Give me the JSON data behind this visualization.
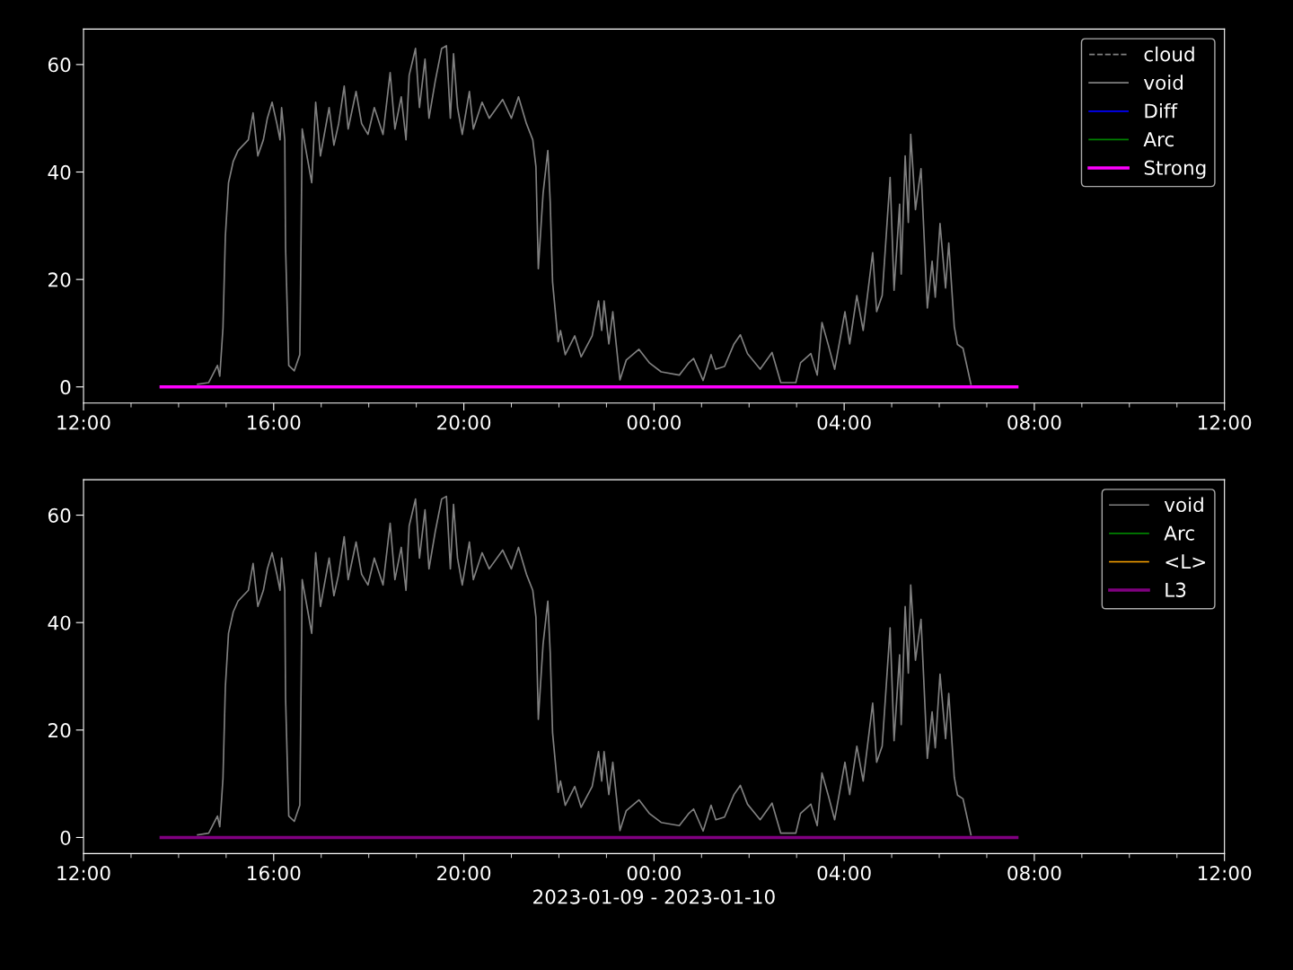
{
  "chart_data": [
    {
      "type": "line",
      "ylim": [
        -3,
        66.6
      ],
      "yticks": [
        0,
        20,
        40,
        60
      ],
      "xlim": [
        "2023-01-09T12:00",
        "2023-01-10T12:00"
      ],
      "xticks": [
        {
          "value": "2023-01-09T12:00",
          "label": "12:00"
        },
        {
          "value": "2023-01-09T16:00",
          "label": "16:00"
        },
        {
          "value": "2023-01-09T20:00",
          "label": "20:00"
        },
        {
          "value": "2023-01-10T00:00",
          "label": "00:00"
        },
        {
          "value": "2023-01-10T04:00",
          "label": "04:00"
        },
        {
          "value": "2023-01-10T08:00",
          "label": "08:00"
        },
        {
          "value": "2023-01-10T12:00",
          "label": "12:00"
        }
      ],
      "grid": false,
      "legend": "top right",
      "series": [
        {
          "name": "cloud",
          "color": "#808080",
          "line_style": "dashed"
        },
        {
          "name": "void",
          "color": "#808080",
          "line_style": "solid",
          "x": [
            "2023-01-09T14:24",
            "2023-01-09T14:38",
            "2023-01-09T14:49",
            "2023-01-09T14:52",
            "2023-01-09T14:56",
            "2023-01-09T14:59",
            "2023-01-09T15:03",
            "2023-01-09T15:09",
            "2023-01-09T15:15",
            "2023-01-09T15:28",
            "2023-01-09T15:34",
            "2023-01-09T15:40",
            "2023-01-09T15:47",
            "2023-01-09T15:52",
            "2023-01-09T15:58",
            "2023-01-09T16:04",
            "2023-01-09T16:08",
            "2023-01-09T16:10",
            "2023-01-09T16:14",
            "2023-01-09T16:15",
            "2023-01-09T16:19",
            "2023-01-09T16:26",
            "2023-01-09T16:33",
            "2023-01-09T16:36",
            "2023-01-09T16:42",
            "2023-01-09T16:48",
            "2023-01-09T16:53",
            "2023-01-09T16:59",
            "2023-01-09T17:10",
            "2023-01-09T17:16",
            "2023-01-09T17:22",
            "2023-01-09T17:29",
            "2023-01-09T17:34",
            "2023-01-09T17:44",
            "2023-01-09T17:51",
            "2023-01-09T17:59",
            "2023-01-09T18:07",
            "2023-01-09T18:18",
            "2023-01-09T18:27",
            "2023-01-09T18:33",
            "2023-01-09T18:41",
            "2023-01-09T18:47",
            "2023-01-09T18:51",
            "2023-01-09T18:59",
            "2023-01-09T19:04",
            "2023-01-09T19:11",
            "2023-01-09T19:16",
            "2023-01-09T19:24",
            "2023-01-09T19:32",
            "2023-01-09T19:38",
            "2023-01-09T19:43",
            "2023-01-09T19:47",
            "2023-01-09T19:52",
            "2023-01-09T19:58",
            "2023-01-09T20:07",
            "2023-01-09T20:12",
            "2023-01-09T20:23",
            "2023-01-09T20:32",
            "2023-01-09T20:49",
            "2023-01-09T21:00",
            "2023-01-09T21:09",
            "2023-01-09T21:19",
            "2023-01-09T21:27",
            "2023-01-09T21:31",
            "2023-01-09T21:34",
            "2023-01-09T21:40",
            "2023-01-09T21:46",
            "2023-01-09T21:49",
            "2023-01-09T21:52",
            "2023-01-09T21:59",
            "2023-01-09T22:02",
            "2023-01-09T22:08",
            "2023-01-09T22:20",
            "2023-01-09T22:28",
            "2023-01-09T22:42",
            "2023-01-09T22:50",
            "2023-01-09T22:54",
            "2023-01-09T22:57",
            "2023-01-09T23:03",
            "2023-01-09T23:08",
            "2023-01-09T23:17",
            "2023-01-09T23:25",
            "2023-01-09T23:41",
            "2023-01-09T23:54",
            "2023-01-10T00:09",
            "2023-01-10T00:32",
            "2023-01-10T00:44",
            "2023-01-10T00:50",
            "2023-01-10T01:02",
            "2023-01-10T01:12",
            "2023-01-10T01:18",
            "2023-01-10T01:29",
            "2023-01-10T01:41",
            "2023-01-10T01:49",
            "2023-01-10T01:58",
            "2023-01-10T02:14",
            "2023-01-10T02:29",
            "2023-01-10T02:40",
            "2023-01-10T02:59",
            "2023-01-10T03:05",
            "2023-01-10T03:18",
            "2023-01-10T03:26",
            "2023-01-10T03:32",
            "2023-01-10T03:40",
            "2023-01-10T03:48",
            "2023-01-10T04:01",
            "2023-01-10T04:07",
            "2023-01-10T04:16",
            "2023-01-10T04:24",
            "2023-01-10T04:36",
            "2023-01-10T04:41",
            "2023-01-10T04:48",
            "2023-01-10T04:58",
            "2023-01-10T05:03",
            "2023-01-10T05:10",
            "2023-01-10T05:12",
            "2023-01-10T05:17",
            "2023-01-10T05:21",
            "2023-01-10T05:24",
            "2023-01-10T05:30",
            "2023-01-10T05:37",
            "2023-01-10T05:45",
            "2023-01-10T05:51",
            "2023-01-10T05:55",
            "2023-01-10T06:01",
            "2023-01-10T06:08",
            "2023-01-10T06:12",
            "2023-01-10T06:19",
            "2023-01-10T06:23",
            "2023-01-10T06:30",
            "2023-01-10T06:40"
          ],
          "values": [
            0.5,
            0.8,
            4,
            2,
            11,
            28,
            38,
            42,
            44,
            46,
            51,
            43,
            46,
            50,
            53,
            49,
            46,
            52,
            46,
            26,
            4,
            3,
            6,
            48,
            43,
            38,
            53,
            43,
            52,
            45,
            49,
            56,
            48,
            55,
            49,
            47,
            52,
            47,
            58.5,
            48,
            54,
            46,
            58,
            63,
            52,
            61,
            50,
            57,
            63,
            63.5,
            50,
            62,
            52,
            47,
            55,
            48,
            53,
            50,
            53.5,
            50,
            54,
            49,
            46,
            41,
            22,
            36,
            44,
            34.5,
            19.5,
            8.4,
            10.5,
            6,
            9.5,
            5.6,
            9.5,
            16,
            10.5,
            16,
            8,
            14,
            1.3,
            5,
            7,
            4.5,
            2.8,
            2.2,
            4.5,
            5.3,
            1.2,
            6,
            3.3,
            3.8,
            8,
            9.7,
            6.2,
            3.3,
            6.4,
            0.8,
            0.8,
            4.5,
            6.2,
            2.2,
            12,
            7.8,
            3.3,
            14,
            8,
            17,
            10.5,
            25,
            14,
            17,
            39,
            18,
            34,
            21,
            43,
            30.6,
            47,
            33,
            40.6,
            14.7,
            23.4,
            16.7,
            30.4,
            18.4,
            26.8,
            11.2,
            7.9,
            7.2,
            0.5
          ]
        },
        {
          "name": "Diff",
          "color": "#0000ff",
          "line_style": "solid"
        },
        {
          "name": "Arc",
          "color": "#008000",
          "line_style": "solid"
        },
        {
          "name": "Strong",
          "color": "#ff00ff",
          "line_style": "solid",
          "x": [
            "2023-01-09T13:38",
            "2023-01-10T07:38"
          ],
          "values": [
            0,
            0
          ]
        }
      ]
    },
    {
      "type": "line",
      "ylim": [
        -3,
        66.6
      ],
      "yticks": [
        0,
        20,
        40,
        60
      ],
      "xlim": [
        "2023-01-09T12:00",
        "2023-01-10T12:00"
      ],
      "xticks": [
        {
          "value": "2023-01-09T12:00",
          "label": "12:00"
        },
        {
          "value": "2023-01-09T16:00",
          "label": "16:00"
        },
        {
          "value": "2023-01-09T20:00",
          "label": "20:00"
        },
        {
          "value": "2023-01-10T00:00",
          "label": "00:00"
        },
        {
          "value": "2023-01-10T04:00",
          "label": "04:00"
        },
        {
          "value": "2023-01-10T08:00",
          "label": "08:00"
        },
        {
          "value": "2023-01-10T12:00",
          "label": "12:00"
        }
      ],
      "xlabel": "2023-01-09 - 2023-01-10",
      "grid": false,
      "legend": "top right",
      "series": [
        {
          "name": "void",
          "color": "#808080",
          "line_style": "solid",
          "x": [
            "2023-01-09T14:24",
            "2023-01-09T14:38",
            "2023-01-09T14:49",
            "2023-01-09T14:52",
            "2023-01-09T14:56",
            "2023-01-09T14:59",
            "2023-01-09T15:03",
            "2023-01-09T15:09",
            "2023-01-09T15:15",
            "2023-01-09T15:28",
            "2023-01-09T15:34",
            "2023-01-09T15:40",
            "2023-01-09T15:47",
            "2023-01-09T15:52",
            "2023-01-09T15:58",
            "2023-01-09T16:04",
            "2023-01-09T16:08",
            "2023-01-09T16:10",
            "2023-01-09T16:14",
            "2023-01-09T16:15",
            "2023-01-09T16:19",
            "2023-01-09T16:26",
            "2023-01-09T16:33",
            "2023-01-09T16:36",
            "2023-01-09T16:42",
            "2023-01-09T16:48",
            "2023-01-09T16:53",
            "2023-01-09T16:59",
            "2023-01-09T17:10",
            "2023-01-09T17:16",
            "2023-01-09T17:22",
            "2023-01-09T17:29",
            "2023-01-09T17:34",
            "2023-01-09T17:44",
            "2023-01-09T17:51",
            "2023-01-09T17:59",
            "2023-01-09T18:07",
            "2023-01-09T18:18",
            "2023-01-09T18:27",
            "2023-01-09T18:33",
            "2023-01-09T18:41",
            "2023-01-09T18:47",
            "2023-01-09T18:51",
            "2023-01-09T18:59",
            "2023-01-09T19:04",
            "2023-01-09T19:11",
            "2023-01-09T19:16",
            "2023-01-09T19:24",
            "2023-01-09T19:32",
            "2023-01-09T19:38",
            "2023-01-09T19:43",
            "2023-01-09T19:47",
            "2023-01-09T19:52",
            "2023-01-09T19:58",
            "2023-01-09T20:07",
            "2023-01-09T20:12",
            "2023-01-09T20:23",
            "2023-01-09T20:32",
            "2023-01-09T20:49",
            "2023-01-09T21:00",
            "2023-01-09T21:09",
            "2023-01-09T21:19",
            "2023-01-09T21:27",
            "2023-01-09T21:31",
            "2023-01-09T21:34",
            "2023-01-09T21:40",
            "2023-01-09T21:46",
            "2023-01-09T21:49",
            "2023-01-09T21:52",
            "2023-01-09T21:59",
            "2023-01-09T22:02",
            "2023-01-09T22:08",
            "2023-01-09T22:20",
            "2023-01-09T22:28",
            "2023-01-09T22:42",
            "2023-01-09T22:50",
            "2023-01-09T22:54",
            "2023-01-09T22:57",
            "2023-01-09T23:03",
            "2023-01-09T23:08",
            "2023-01-09T23:17",
            "2023-01-09T23:25",
            "2023-01-09T23:41",
            "2023-01-09T23:54",
            "2023-01-10T00:09",
            "2023-01-10T00:32",
            "2023-01-10T00:44",
            "2023-01-10T00:50",
            "2023-01-10T01:02",
            "2023-01-10T01:12",
            "2023-01-10T01:18",
            "2023-01-10T01:29",
            "2023-01-10T01:41",
            "2023-01-10T01:49",
            "2023-01-10T01:58",
            "2023-01-10T02:14",
            "2023-01-10T02:29",
            "2023-01-10T02:40",
            "2023-01-10T02:59",
            "2023-01-10T03:05",
            "2023-01-10T03:18",
            "2023-01-10T03:26",
            "2023-01-10T03:32",
            "2023-01-10T03:40",
            "2023-01-10T03:48",
            "2023-01-10T04:01",
            "2023-01-10T04:07",
            "2023-01-10T04:16",
            "2023-01-10T04:24",
            "2023-01-10T04:36",
            "2023-01-10T04:41",
            "2023-01-10T04:48",
            "2023-01-10T04:58",
            "2023-01-10T05:03",
            "2023-01-10T05:10",
            "2023-01-10T05:12",
            "2023-01-10T05:17",
            "2023-01-10T05:21",
            "2023-01-10T05:24",
            "2023-01-10T05:30",
            "2023-01-10T05:37",
            "2023-01-10T05:45",
            "2023-01-10T05:51",
            "2023-01-10T05:55",
            "2023-01-10T06:01",
            "2023-01-10T06:08",
            "2023-01-10T06:12",
            "2023-01-10T06:19",
            "2023-01-10T06:23",
            "2023-01-10T06:30",
            "2023-01-10T06:40"
          ],
          "values": [
            0.5,
            0.8,
            4,
            2,
            11,
            28,
            38,
            42,
            44,
            46,
            51,
            43,
            46,
            50,
            53,
            49,
            46,
            52,
            46,
            26,
            4,
            3,
            6,
            48,
            43,
            38,
            53,
            43,
            52,
            45,
            49,
            56,
            48,
            55,
            49,
            47,
            52,
            47,
            58.5,
            48,
            54,
            46,
            58,
            63,
            52,
            61,
            50,
            57,
            63,
            63.5,
            50,
            62,
            52,
            47,
            55,
            48,
            53,
            50,
            53.5,
            50,
            54,
            49,
            46,
            41,
            22,
            36,
            44,
            34.5,
            19.5,
            8.4,
            10.5,
            6,
            9.5,
            5.6,
            9.5,
            16,
            10.5,
            16,
            8,
            14,
            1.3,
            5,
            7,
            4.5,
            2.8,
            2.2,
            4.5,
            5.3,
            1.2,
            6,
            3.3,
            3.8,
            8,
            9.7,
            6.2,
            3.3,
            6.4,
            0.8,
            0.8,
            4.5,
            6.2,
            2.2,
            12,
            7.8,
            3.3,
            14,
            8,
            17,
            10.5,
            25,
            14,
            17,
            39,
            18,
            34,
            21,
            43,
            30.6,
            47,
            33,
            40.6,
            14.7,
            23.4,
            16.7,
            30.4,
            18.4,
            26.8,
            11.2,
            7.9,
            7.2,
            0.5
          ]
        },
        {
          "name": "Arc",
          "color": "#008000",
          "line_style": "solid"
        },
        {
          "name": "<L>",
          "color": "#ffa500",
          "line_style": "solid"
        },
        {
          "name": "L3",
          "color": "#800080",
          "line_style": "solid",
          "x": [
            "2023-01-09T13:38",
            "2023-01-10T07:38"
          ],
          "values": [
            0,
            0
          ]
        }
      ]
    }
  ]
}
